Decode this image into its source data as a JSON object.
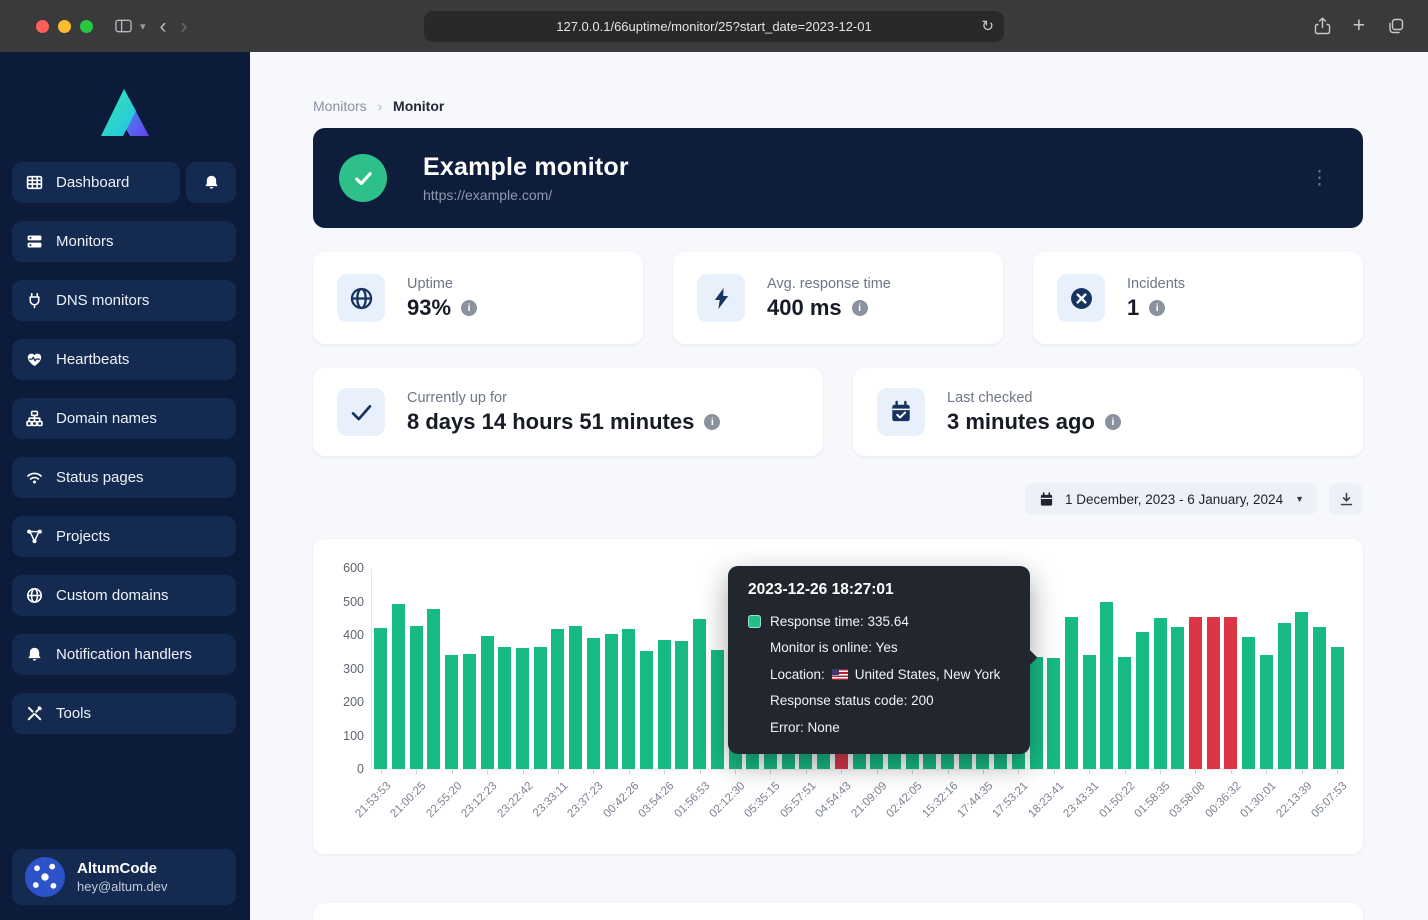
{
  "browser": {
    "url": "127.0.0.1/66uptime/monitor/25?start_date=2023-12-01"
  },
  "sidebar": {
    "items": [
      {
        "label": "Dashboard",
        "icon": "grid-icon",
        "has_bell": true
      },
      {
        "label": "Monitors",
        "icon": "server-icon"
      },
      {
        "label": "DNS monitors",
        "icon": "plug-icon"
      },
      {
        "label": "Heartbeats",
        "icon": "heart-icon"
      },
      {
        "label": "Domain names",
        "icon": "sitemap-icon"
      },
      {
        "label": "Status pages",
        "icon": "wifi-icon"
      },
      {
        "label": "Projects",
        "icon": "nodes-icon"
      },
      {
        "label": "Custom domains",
        "icon": "globe-icon"
      },
      {
        "label": "Notification handlers",
        "icon": "bell-icon"
      },
      {
        "label": "Tools",
        "icon": "tools-icon"
      }
    ],
    "footer": {
      "name": "AltumCode",
      "email": "hey@altum.dev"
    }
  },
  "breadcrumb": {
    "parent": "Monitors",
    "current": "Monitor"
  },
  "monitor": {
    "title": "Example monitor",
    "url": "https://example.com/",
    "status": "up"
  },
  "stats_row1": [
    {
      "icon": "globe-stat-icon",
      "label": "Uptime",
      "value": "93%"
    },
    {
      "icon": "bolt-icon",
      "label": "Avg. response time",
      "value": "400 ms"
    },
    {
      "icon": "circle-x-icon",
      "label": "Incidents",
      "value": "1"
    }
  ],
  "stats_row2": [
    {
      "icon": "check-icon",
      "label": "Currently up for",
      "value": "8 days 14 hours 51 minutes"
    },
    {
      "icon": "calendar-check-icon",
      "label": "Last checked",
      "value": "3 minutes ago"
    }
  ],
  "toolbar": {
    "date_range": "1 December, 2023 - 6 January, 2024"
  },
  "chart_data": {
    "type": "bar",
    "title": "Response time per check",
    "ylabel": "",
    "xlabel": "",
    "ylim": [
      0,
      600
    ],
    "yticks": [
      0,
      100,
      200,
      300,
      400,
      500,
      600
    ],
    "grid": false,
    "bar_colors": {
      "up": "#16ba82",
      "down": "#dc3545"
    },
    "label_every": 2,
    "x_labels": [
      "21:53:53",
      "21:00:25",
      "22:55:20",
      "23:12:23",
      "23:22:42",
      "23:33:11",
      "23:37:23",
      "00:42:26",
      "03:54:26",
      "01:56:53",
      "02:12:30",
      "05:35:15",
      "05:57:51",
      "04:54:43",
      "21:09:09",
      "02:42:05",
      "15:32:16",
      "17:44:35",
      "17:53:21",
      "18:23:41",
      "23:43:31",
      "01:50:22",
      "01:58:35",
      "03:58:08",
      "00:36:32",
      "01:30:01",
      "22:13:39",
      "05:07:53"
    ],
    "values": [
      420,
      493,
      427,
      478,
      340,
      343,
      397,
      363,
      361,
      365,
      418,
      428,
      390,
      404,
      419,
      353,
      385,
      381,
      447,
      354,
      337,
      362,
      410,
      385,
      356,
      372,
      455,
      341,
      390,
      420,
      365,
      350,
      430,
      388,
      402,
      377,
      358,
      335.64,
      330,
      455,
      340,
      500,
      335,
      410,
      450,
      425,
      455,
      455,
      455,
      395,
      340,
      435,
      470,
      425,
      365
    ],
    "down_indices": [
      26,
      46,
      47,
      48
    ],
    "hovered_bar_index": 37
  },
  "chart_tooltip": {
    "title": "2023-12-26 18:27:01",
    "marker_color": "#23bf89",
    "rows": [
      {
        "marker": true,
        "text": "Response time: 335.64"
      },
      {
        "text": "Monitor is online: Yes"
      },
      {
        "flag": "US",
        "text_before_flag": "Location:",
        "text_after_flag": "United States, New York"
      },
      {
        "text": "Response status code: 200"
      },
      {
        "text": "Error: None"
      }
    ]
  }
}
